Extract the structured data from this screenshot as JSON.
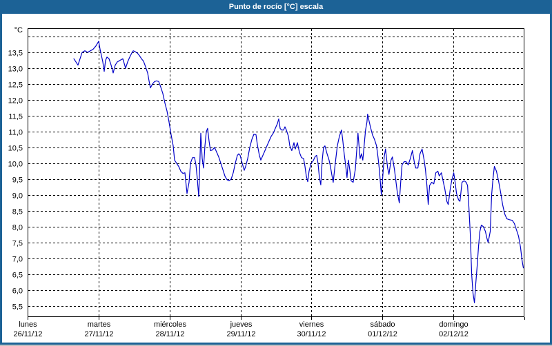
{
  "window": {
    "title": "Punto de rocío [°C] escala"
  },
  "colors": {
    "titlebar": "#1c6296",
    "frame": "#1c6296",
    "background": "#ffffff",
    "grid": "#000000",
    "plot_border": "#000000",
    "line": "#0000c8",
    "text": "#000000"
  },
  "chart_data": {
    "type": "line",
    "title": "Punto de rocío [°C] escala",
    "xlabel": "",
    "ylabel": "°C",
    "y_unit_label": "°C",
    "decimal_separator": ",",
    "ylim": [
      5.15,
      14.26
    ],
    "yticks": {
      "label_min": 5.5,
      "label_max": 13.5,
      "step": 0.5,
      "extra_unlabeled_gridline": 14.0
    },
    "xlim_days": [
      0,
      7
    ],
    "grid": "dashed",
    "legend_position": "none",
    "x_day_labels": [
      {
        "name": "lunes",
        "date": "26/11/12"
      },
      {
        "name": "martes",
        "date": "27/11/12"
      },
      {
        "name": "miércoles",
        "date": "28/11/12"
      },
      {
        "name": "jueves",
        "date": "29/11/12"
      },
      {
        "name": "viernes",
        "date": "30/11/12"
      },
      {
        "name": "sábado",
        "date": "01/12/12"
      },
      {
        "name": "domingo",
        "date": "02/12/12"
      }
    ],
    "series": [
      {
        "name": "Punto de rocío",
        "color": "#0000c8",
        "points": [
          [
            0.651,
            13.3
          ],
          [
            0.681,
            13.2
          ],
          [
            0.71,
            13.1
          ],
          [
            0.739,
            13.3
          ],
          [
            0.768,
            13.5
          ],
          [
            0.807,
            13.55
          ],
          [
            0.846,
            13.5
          ],
          [
            0.885,
            13.55
          ],
          [
            0.924,
            13.6
          ],
          [
            0.962,
            13.7
          ],
          [
            1.001,
            13.85
          ],
          [
            1.021,
            13.6
          ],
          [
            1.04,
            13.4
          ],
          [
            1.06,
            13.2
          ],
          [
            1.079,
            12.9
          ],
          [
            1.099,
            13.25
          ],
          [
            1.118,
            13.35
          ],
          [
            1.147,
            13.3
          ],
          [
            1.176,
            13.1
          ],
          [
            1.206,
            12.85
          ],
          [
            1.235,
            13.1
          ],
          [
            1.264,
            13.2
          ],
          [
            1.303,
            13.25
          ],
          [
            1.342,
            13.3
          ],
          [
            1.361,
            13.15
          ],
          [
            1.381,
            13.0
          ],
          [
            1.41,
            13.2
          ],
          [
            1.439,
            13.35
          ],
          [
            1.468,
            13.48
          ],
          [
            1.488,
            13.55
          ],
          [
            1.517,
            13.52
          ],
          [
            1.546,
            13.48
          ],
          [
            1.575,
            13.4
          ],
          [
            1.604,
            13.3
          ],
          [
            1.633,
            13.22
          ],
          [
            1.662,
            13.05
          ],
          [
            1.692,
            12.85
          ],
          [
            1.711,
            12.6
          ],
          [
            1.731,
            12.38
          ],
          [
            1.76,
            12.5
          ],
          [
            1.789,
            12.58
          ],
          [
            1.818,
            12.6
          ],
          [
            1.847,
            12.58
          ],
          [
            1.876,
            12.4
          ],
          [
            1.906,
            12.2
          ],
          [
            1.935,
            11.9
          ],
          [
            1.964,
            11.65
          ],
          [
            1.993,
            11.3
          ],
          [
            2.022,
            10.9
          ],
          [
            2.051,
            10.55
          ],
          [
            2.071,
            10.1
          ],
          [
            2.1,
            10.0
          ],
          [
            2.129,
            9.9
          ],
          [
            2.158,
            9.75
          ],
          [
            2.188,
            9.68
          ],
          [
            2.217,
            9.7
          ],
          [
            2.246,
            9.05
          ],
          [
            2.275,
            9.4
          ],
          [
            2.294,
            10.0
          ],
          [
            2.324,
            10.18
          ],
          [
            2.353,
            10.18
          ],
          [
            2.372,
            9.95
          ],
          [
            2.392,
            9.5
          ],
          [
            2.411,
            8.95
          ],
          [
            2.43,
            10.2
          ],
          [
            2.44,
            10.95
          ],
          [
            2.46,
            10.15
          ],
          [
            2.479,
            9.85
          ],
          [
            2.499,
            10.55
          ],
          [
            2.518,
            11.0
          ],
          [
            2.537,
            11.1
          ],
          [
            2.557,
            10.7
          ],
          [
            2.576,
            10.4
          ],
          [
            2.605,
            10.42
          ],
          [
            2.634,
            10.5
          ],
          [
            2.664,
            10.35
          ],
          [
            2.693,
            10.2
          ],
          [
            2.722,
            10.0
          ],
          [
            2.751,
            9.8
          ],
          [
            2.78,
            9.6
          ],
          [
            2.81,
            9.48
          ],
          [
            2.839,
            9.45
          ],
          [
            2.868,
            9.5
          ],
          [
            2.897,
            9.7
          ],
          [
            2.926,
            10.0
          ],
          [
            2.956,
            10.25
          ],
          [
            2.975,
            10.3
          ],
          [
            2.994,
            10.25
          ],
          [
            3.024,
            10.0
          ],
          [
            3.053,
            9.78
          ],
          [
            3.072,
            9.9
          ],
          [
            3.101,
            10.15
          ],
          [
            3.131,
            10.5
          ],
          [
            3.16,
            10.75
          ],
          [
            3.189,
            10.92
          ],
          [
            3.218,
            10.9
          ],
          [
            3.237,
            10.6
          ],
          [
            3.266,
            10.25
          ],
          [
            3.286,
            10.1
          ],
          [
            3.315,
            10.25
          ],
          [
            3.344,
            10.4
          ],
          [
            3.373,
            10.55
          ],
          [
            3.402,
            10.7
          ],
          [
            3.432,
            10.85
          ],
          [
            3.461,
            10.95
          ],
          [
            3.49,
            11.1
          ],
          [
            3.519,
            11.25
          ],
          [
            3.539,
            11.4
          ],
          [
            3.558,
            11.1
          ],
          [
            3.578,
            11.05
          ],
          [
            3.607,
            11.05
          ],
          [
            3.626,
            11.15
          ],
          [
            3.646,
            11.05
          ],
          [
            3.675,
            10.85
          ],
          [
            3.694,
            10.55
          ],
          [
            3.723,
            10.4
          ],
          [
            3.753,
            10.65
          ],
          [
            3.772,
            10.45
          ],
          [
            3.801,
            10.65
          ],
          [
            3.83,
            10.35
          ],
          [
            3.859,
            10.18
          ],
          [
            3.889,
            10.15
          ],
          [
            3.908,
            9.9
          ],
          [
            3.927,
            9.6
          ],
          [
            3.947,
            9.42
          ],
          [
            3.966,
            9.75
          ],
          [
            3.995,
            10.0
          ],
          [
            4.024,
            10.08
          ],
          [
            4.054,
            10.22
          ],
          [
            4.073,
            10.25
          ],
          [
            4.092,
            10.0
          ],
          [
            4.112,
            9.55
          ],
          [
            4.131,
            9.32
          ],
          [
            4.151,
            10.1
          ],
          [
            4.17,
            10.5
          ],
          [
            4.189,
            10.55
          ],
          [
            4.219,
            10.3
          ],
          [
            4.248,
            10.1
          ],
          [
            4.267,
            9.9
          ],
          [
            4.286,
            9.65
          ],
          [
            4.306,
            9.4
          ],
          [
            4.335,
            10.0
          ],
          [
            4.364,
            10.55
          ],
          [
            4.393,
            10.85
          ],
          [
            4.423,
            11.05
          ],
          [
            4.442,
            10.7
          ],
          [
            4.461,
            10.3
          ],
          [
            4.481,
            9.95
          ],
          [
            4.5,
            9.55
          ],
          [
            4.52,
            10.1
          ],
          [
            4.539,
            9.8
          ],
          [
            4.558,
            9.45
          ],
          [
            4.587,
            9.4
          ],
          [
            4.617,
            9.8
          ],
          [
            4.636,
            10.35
          ],
          [
            4.655,
            10.95
          ],
          [
            4.685,
            10.15
          ],
          [
            4.704,
            10.3
          ],
          [
            4.723,
            10.1
          ],
          [
            4.743,
            10.6
          ],
          [
            4.762,
            11.05
          ],
          [
            4.781,
            11.3
          ],
          [
            4.791,
            11.55
          ],
          [
            4.81,
            11.35
          ],
          [
            4.83,
            11.15
          ],
          [
            4.859,
            10.9
          ],
          [
            4.888,
            10.75
          ],
          [
            4.917,
            10.55
          ],
          [
            4.937,
            10.2
          ],
          [
            4.956,
            9.8
          ],
          [
            4.985,
            9.0
          ],
          [
            5.005,
            9.6
          ],
          [
            5.024,
            10.2
          ],
          [
            5.043,
            10.45
          ],
          [
            5.073,
            9.85
          ],
          [
            5.092,
            9.65
          ],
          [
            5.121,
            10.1
          ],
          [
            5.14,
            10.2
          ],
          [
            5.169,
            9.8
          ],
          [
            5.189,
            9.45
          ],
          [
            5.208,
            9.1
          ],
          [
            5.237,
            8.75
          ],
          [
            5.257,
            9.4
          ],
          [
            5.276,
            9.95
          ],
          [
            5.305,
            10.05
          ],
          [
            5.334,
            10.05
          ],
          [
            5.363,
            9.95
          ],
          [
            5.393,
            10.15
          ],
          [
            5.422,
            10.4
          ],
          [
            5.451,
            10.0
          ],
          [
            5.47,
            9.85
          ],
          [
            5.499,
            9.85
          ],
          [
            5.529,
            10.3
          ],
          [
            5.558,
            10.45
          ],
          [
            5.587,
            10.1
          ],
          [
            5.606,
            9.8
          ],
          [
            5.626,
            9.3
          ],
          [
            5.645,
            8.7
          ],
          [
            5.664,
            9.3
          ],
          [
            5.694,
            9.4
          ],
          [
            5.723,
            9.35
          ],
          [
            5.752,
            9.7
          ],
          [
            5.781,
            9.75
          ],
          [
            5.8,
            9.6
          ],
          [
            5.83,
            9.7
          ],
          [
            5.849,
            9.5
          ],
          [
            5.878,
            9.2
          ],
          [
            5.907,
            8.8
          ],
          [
            5.927,
            8.7
          ],
          [
            5.956,
            9.2
          ],
          [
            5.975,
            9.45
          ],
          [
            6.004,
            9.7
          ],
          [
            6.024,
            9.4
          ],
          [
            6.043,
            9.05
          ],
          [
            6.072,
            8.85
          ],
          [
            6.092,
            8.8
          ],
          [
            6.121,
            9.4
          ],
          [
            6.15,
            9.45
          ],
          [
            6.179,
            9.4
          ],
          [
            6.199,
            9.3
          ],
          [
            6.218,
            8.6
          ],
          [
            6.237,
            7.8
          ],
          [
            6.257,
            6.5
          ],
          [
            6.276,
            5.9
          ],
          [
            6.296,
            5.6
          ],
          [
            6.315,
            6.2
          ],
          [
            6.334,
            6.75
          ],
          [
            6.354,
            7.4
          ],
          [
            6.373,
            7.85
          ],
          [
            6.393,
            8.05
          ],
          [
            6.422,
            8.0
          ],
          [
            6.451,
            7.85
          ],
          [
            6.47,
            7.65
          ],
          [
            6.489,
            7.5
          ],
          [
            6.519,
            7.85
          ],
          [
            6.538,
            9.0
          ],
          [
            6.557,
            9.5
          ],
          [
            6.577,
            9.9
          ],
          [
            6.606,
            9.75
          ],
          [
            6.635,
            9.45
          ],
          [
            6.664,
            9.1
          ],
          [
            6.693,
            8.7
          ],
          [
            6.723,
            8.4
          ],
          [
            6.752,
            8.25
          ],
          [
            6.791,
            8.22
          ],
          [
            6.829,
            8.2
          ],
          [
            6.859,
            8.1
          ],
          [
            6.888,
            7.9
          ],
          [
            6.917,
            7.7
          ],
          [
            6.946,
            7.35
          ],
          [
            6.966,
            6.95
          ],
          [
            6.985,
            6.7
          ]
        ]
      }
    ]
  }
}
